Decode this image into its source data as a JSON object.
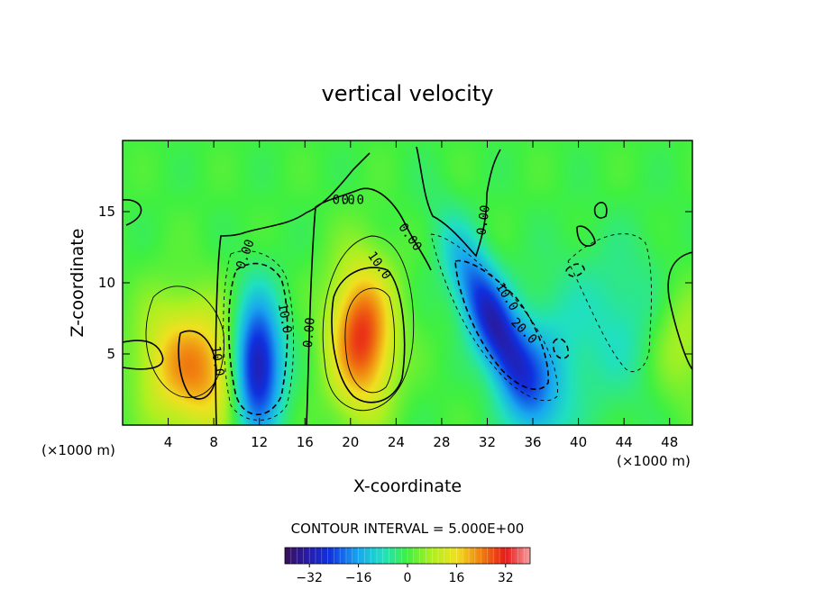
{
  "chart_data": {
    "type": "heatmap",
    "title": "vertical velocity",
    "xlabel": "X-coordinate",
    "ylabel": "Z-coordinate",
    "x_unit_left": "(×1000 m)",
    "x_unit_right": "(×1000 m)",
    "xlim": [
      0,
      50
    ],
    "ylim": [
      0,
      20
    ],
    "x_ticks": [
      "4",
      "8",
      "12",
      "16",
      "20",
      "24",
      "28",
      "32",
      "36",
      "40",
      "44",
      "48"
    ],
    "y_ticks": [
      "5",
      "10",
      "15"
    ],
    "contour_interval_label": "CONTOUR INTERVAL = 5.000E+00",
    "colorbar": {
      "range": [
        -40,
        40
      ],
      "ticks": [
        "−32",
        "−16",
        "0",
        "16",
        "32"
      ]
    },
    "contour_labels": [
      {
        "text": "0.00",
        "x": 10.8,
        "y": 12.0,
        "angle": -70
      },
      {
        "text": "10.0",
        "x": 14.2,
        "y": 7.5,
        "angle": 80
      },
      {
        "text": "0.00",
        "x": 16.4,
        "y": 6.5,
        "angle": -85
      },
      {
        "text": "10.0",
        "x": 8.3,
        "y": 4.5,
        "angle": 82
      },
      {
        "text": "0.00",
        "x": 25.2,
        "y": 13.2,
        "angle": 55
      },
      {
        "text": "10.0",
        "x": 22.5,
        "y": 11.2,
        "angle": 55
      },
      {
        "text": "0.00",
        "x": 31.7,
        "y": 14.4,
        "angle": -82
      },
      {
        "text": "10.0",
        "x": 33.7,
        "y": 9.0,
        "angle": 58
      },
      {
        "text": "20.0",
        "x": 35.2,
        "y": 6.6,
        "angle": 45
      },
      {
        "text": "0.0",
        "x": 19.4,
        "y": 15.8,
        "angle": 0
      },
      {
        "text": "0.0",
        "x": 20.2,
        "y": 15.8,
        "angle": 0
      }
    ],
    "features": [
      {
        "kind": "updraft",
        "x": 4.0,
        "z": 4.5,
        "peak": 14
      },
      {
        "kind": "updraft",
        "x": 7.5,
        "z": 3.8,
        "peak": 18
      },
      {
        "kind": "downdraft",
        "x": 11.8,
        "z": 4.2,
        "peak": -34
      },
      {
        "kind": "updraft",
        "x": 21.0,
        "z": 6.2,
        "peak": 30
      },
      {
        "kind": "downdraft",
        "x": 32.5,
        "z": 7.2,
        "peak": -30
      },
      {
        "kind": "downdraft",
        "x": 36.5,
        "z": 3.2,
        "peak": -12
      },
      {
        "kind": "downdraft",
        "x": 44.0,
        "z": 7.0,
        "peak": -8
      },
      {
        "kind": "updraft",
        "x": 49.0,
        "z": 6.0,
        "peak": 12
      }
    ]
  }
}
